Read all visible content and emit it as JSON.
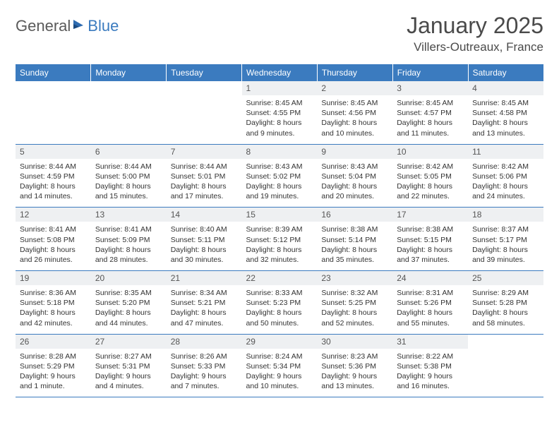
{
  "brand": {
    "name_gray": "General",
    "name_blue": "Blue"
  },
  "title": {
    "month": "January 2025",
    "location": "Villers-Outreaux, France"
  },
  "colors": {
    "header_bg": "#3b7bbf",
    "header_text": "#ffffff",
    "daynum_bg": "#eef0f2",
    "border": "#3b7bbf",
    "text": "#333333",
    "logo_gray": "#5a5a5a",
    "logo_blue": "#3b7bbf"
  },
  "weekdays": [
    "Sunday",
    "Monday",
    "Tuesday",
    "Wednesday",
    "Thursday",
    "Friday",
    "Saturday"
  ],
  "weeks": [
    [
      null,
      null,
      null,
      {
        "n": "1",
        "sr": "8:45 AM",
        "ss": "4:55 PM",
        "dl": "8 hours and 9 minutes."
      },
      {
        "n": "2",
        "sr": "8:45 AM",
        "ss": "4:56 PM",
        "dl": "8 hours and 10 minutes."
      },
      {
        "n": "3",
        "sr": "8:45 AM",
        "ss": "4:57 PM",
        "dl": "8 hours and 11 minutes."
      },
      {
        "n": "4",
        "sr": "8:45 AM",
        "ss": "4:58 PM",
        "dl": "8 hours and 13 minutes."
      }
    ],
    [
      {
        "n": "5",
        "sr": "8:44 AM",
        "ss": "4:59 PM",
        "dl": "8 hours and 14 minutes."
      },
      {
        "n": "6",
        "sr": "8:44 AM",
        "ss": "5:00 PM",
        "dl": "8 hours and 15 minutes."
      },
      {
        "n": "7",
        "sr": "8:44 AM",
        "ss": "5:01 PM",
        "dl": "8 hours and 17 minutes."
      },
      {
        "n": "8",
        "sr": "8:43 AM",
        "ss": "5:02 PM",
        "dl": "8 hours and 19 minutes."
      },
      {
        "n": "9",
        "sr": "8:43 AM",
        "ss": "5:04 PM",
        "dl": "8 hours and 20 minutes."
      },
      {
        "n": "10",
        "sr": "8:42 AM",
        "ss": "5:05 PM",
        "dl": "8 hours and 22 minutes."
      },
      {
        "n": "11",
        "sr": "8:42 AM",
        "ss": "5:06 PM",
        "dl": "8 hours and 24 minutes."
      }
    ],
    [
      {
        "n": "12",
        "sr": "8:41 AM",
        "ss": "5:08 PM",
        "dl": "8 hours and 26 minutes."
      },
      {
        "n": "13",
        "sr": "8:41 AM",
        "ss": "5:09 PM",
        "dl": "8 hours and 28 minutes."
      },
      {
        "n": "14",
        "sr": "8:40 AM",
        "ss": "5:11 PM",
        "dl": "8 hours and 30 minutes."
      },
      {
        "n": "15",
        "sr": "8:39 AM",
        "ss": "5:12 PM",
        "dl": "8 hours and 32 minutes."
      },
      {
        "n": "16",
        "sr": "8:38 AM",
        "ss": "5:14 PM",
        "dl": "8 hours and 35 minutes."
      },
      {
        "n": "17",
        "sr": "8:38 AM",
        "ss": "5:15 PM",
        "dl": "8 hours and 37 minutes."
      },
      {
        "n": "18",
        "sr": "8:37 AM",
        "ss": "5:17 PM",
        "dl": "8 hours and 39 minutes."
      }
    ],
    [
      {
        "n": "19",
        "sr": "8:36 AM",
        "ss": "5:18 PM",
        "dl": "8 hours and 42 minutes."
      },
      {
        "n": "20",
        "sr": "8:35 AM",
        "ss": "5:20 PM",
        "dl": "8 hours and 44 minutes."
      },
      {
        "n": "21",
        "sr": "8:34 AM",
        "ss": "5:21 PM",
        "dl": "8 hours and 47 minutes."
      },
      {
        "n": "22",
        "sr": "8:33 AM",
        "ss": "5:23 PM",
        "dl": "8 hours and 50 minutes."
      },
      {
        "n": "23",
        "sr": "8:32 AM",
        "ss": "5:25 PM",
        "dl": "8 hours and 52 minutes."
      },
      {
        "n": "24",
        "sr": "8:31 AM",
        "ss": "5:26 PM",
        "dl": "8 hours and 55 minutes."
      },
      {
        "n": "25",
        "sr": "8:29 AM",
        "ss": "5:28 PM",
        "dl": "8 hours and 58 minutes."
      }
    ],
    [
      {
        "n": "26",
        "sr": "8:28 AM",
        "ss": "5:29 PM",
        "dl": "9 hours and 1 minute."
      },
      {
        "n": "27",
        "sr": "8:27 AM",
        "ss": "5:31 PM",
        "dl": "9 hours and 4 minutes."
      },
      {
        "n": "28",
        "sr": "8:26 AM",
        "ss": "5:33 PM",
        "dl": "9 hours and 7 minutes."
      },
      {
        "n": "29",
        "sr": "8:24 AM",
        "ss": "5:34 PM",
        "dl": "9 hours and 10 minutes."
      },
      {
        "n": "30",
        "sr": "8:23 AM",
        "ss": "5:36 PM",
        "dl": "9 hours and 13 minutes."
      },
      {
        "n": "31",
        "sr": "8:22 AM",
        "ss": "5:38 PM",
        "dl": "9 hours and 16 minutes."
      },
      null
    ]
  ],
  "labels": {
    "sunrise": "Sunrise:",
    "sunset": "Sunset:",
    "daylight": "Daylight:"
  }
}
